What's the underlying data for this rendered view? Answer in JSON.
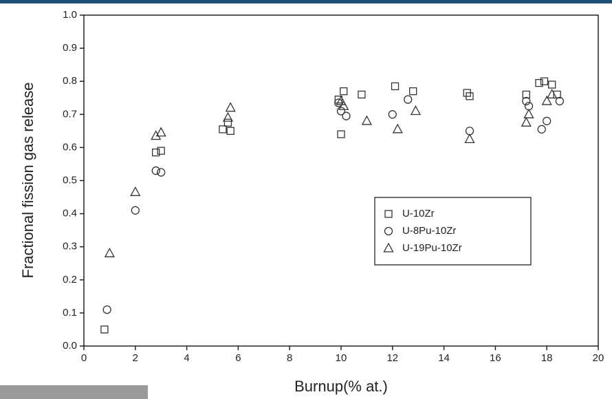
{
  "chart_data": {
    "type": "scatter",
    "x_label": "Burnup(% at.)",
    "y_label": "Fractional fission gas release",
    "xlim": [
      0,
      20
    ],
    "xticks": [
      0,
      2,
      4,
      6,
      8,
      10,
      12,
      14,
      16,
      18,
      20
    ],
    "ylim": [
      0,
      1
    ],
    "yticks": [
      {
        "value": 0,
        "label": "0.0"
      },
      0.1,
      0.2,
      0.3,
      0.4,
      0.5,
      0.6,
      0.7,
      0.8,
      0.9,
      {
        "value": 1,
        "label": "1.0"
      }
    ],
    "grid": false,
    "legend_position": "right",
    "series": [
      {
        "name": "U-10Zr",
        "color": "#333333",
        "marker": "square",
        "x": [
          0.8,
          2.8,
          3.0,
          5.4,
          5.6,
          5.7,
          9.9,
          10.0,
          10.1,
          10.8,
          12.1,
          12.8,
          14.9,
          15.0,
          17.2,
          17.7,
          17.9,
          18.2,
          18.4
        ],
        "values": [
          0.05,
          0.585,
          0.59,
          0.655,
          0.675,
          0.65,
          0.745,
          0.64,
          0.77,
          0.76,
          0.785,
          0.77,
          0.765,
          0.755,
          0.76,
          0.795,
          0.8,
          0.79,
          0.76
        ]
      },
      {
        "name": "U-8Pu-10Zr",
        "color": "#333333",
        "marker": "circle",
        "x": [
          0.9,
          2.0,
          2.8,
          3.0,
          9.9,
          10.0,
          10.2,
          12.0,
          12.6,
          15.0,
          17.2,
          17.3,
          17.8,
          18.0,
          18.5
        ],
        "values": [
          0.11,
          0.41,
          0.53,
          0.525,
          0.735,
          0.71,
          0.695,
          0.7,
          0.745,
          0.65,
          0.74,
          0.725,
          0.655,
          0.68,
          0.74
        ]
      },
      {
        "name": "U-19Pu-10Zr",
        "color": "#333333",
        "marker": "triangle",
        "x": [
          1.0,
          2.0,
          2.8,
          3.0,
          5.6,
          5.7,
          10.0,
          10.1,
          11.0,
          12.2,
          12.9,
          15.0,
          17.2,
          17.3,
          18.0,
          18.2
        ],
        "values": [
          0.28,
          0.465,
          0.635,
          0.645,
          0.69,
          0.72,
          0.74,
          0.725,
          0.68,
          0.655,
          0.71,
          0.625,
          0.675,
          0.7,
          0.74,
          0.76
        ]
      }
    ]
  }
}
